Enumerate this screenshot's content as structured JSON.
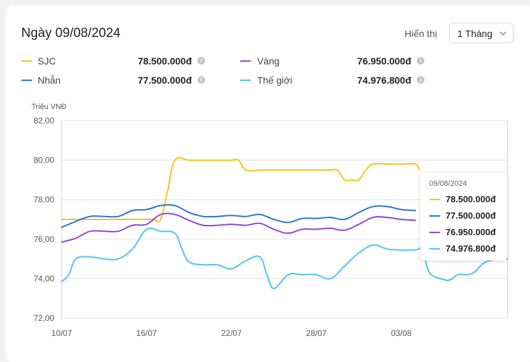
{
  "header": {
    "title": "Ngày 09/08/2024",
    "display_label": "Hiển thị",
    "period_value": "1 Tháng"
  },
  "legend": [
    {
      "name": "SJC",
      "value": "78.500.000đ",
      "color": "#f5c518"
    },
    {
      "name": "Vàng",
      "value": "76.950.000đ",
      "color": "#8c45d6"
    },
    {
      "name": "Nhẫn",
      "value": "77.500.000đ",
      "color": "#2a72d8"
    },
    {
      "name": "Thế giới",
      "value": "74.976.800đ",
      "color": "#4cc4ec"
    }
  ],
  "tooltip": {
    "date": "09/08/2024",
    "values": [
      {
        "value": "78.500.000đ",
        "color": "#f5c518"
      },
      {
        "value": "77.500.000đ",
        "color": "#2a72d8"
      },
      {
        "value": "76.950.000đ",
        "color": "#8c45d6"
      },
      {
        "value": "74.976.800đ",
        "color": "#4cc4ec"
      }
    ]
  },
  "chart_data": {
    "type": "line",
    "ylabel": "Triệu VNĐ",
    "ylim": [
      72,
      82
    ],
    "yticks": [
      "82,00",
      "80,00",
      "78,00",
      "76,00",
      "74,00",
      "72,00"
    ],
    "xlim": [
      0,
      31.5
    ],
    "xticks": [
      {
        "label": "10/07",
        "x": 0
      },
      {
        "label": "16/07",
        "x": 6
      },
      {
        "label": "22/07",
        "x": 12
      },
      {
        "label": "28/07",
        "x": 18
      },
      {
        "label": "03/08",
        "x": 24
      }
    ],
    "grid": true,
    "series": [
      {
        "name": "SJC",
        "color": "#f5c518",
        "x": [
          0,
          1,
          2,
          3,
          4,
          5,
          6,
          6.5,
          7,
          7.5,
          8,
          9,
          10,
          11,
          12,
          12.5,
          13,
          14,
          15,
          16,
          17,
          18,
          19,
          19.5,
          20,
          20.5,
          21,
          21.5,
          22,
          23,
          24,
          25,
          25.3
        ],
        "y": [
          77,
          77,
          77,
          77,
          77,
          77,
          77,
          77,
          77,
          78.5,
          80,
          80,
          80,
          80,
          80,
          80,
          79.5,
          79.5,
          79.5,
          79.5,
          79.5,
          79.5,
          79.5,
          79.5,
          79,
          79,
          79,
          79.5,
          79.8,
          79.8,
          79.8,
          79.8,
          79.5
        ]
      },
      {
        "name": "Nhẫn",
        "color": "#2a72d8",
        "x": [
          0,
          1,
          2,
          3,
          4,
          5,
          6,
          7,
          8,
          9,
          10,
          11,
          12,
          13,
          14,
          15,
          16,
          17,
          18,
          19,
          20,
          21,
          22,
          23,
          24,
          25
        ],
        "y": [
          76.6,
          76.9,
          77.15,
          77.15,
          77.15,
          77.45,
          77.5,
          77.7,
          77.7,
          77.35,
          77.15,
          77.15,
          77.2,
          77.15,
          77.25,
          77.0,
          76.85,
          77.05,
          77.05,
          77.1,
          77.0,
          77.35,
          77.65,
          77.65,
          77.5,
          77.45
        ]
      },
      {
        "name": "Vàng",
        "color": "#8c45d6",
        "x": [
          0,
          1,
          2,
          3,
          4,
          5,
          6,
          7,
          8,
          9,
          10,
          11,
          12,
          13,
          14,
          15,
          16,
          17,
          18,
          19,
          20,
          21,
          22,
          23,
          24,
          25
        ],
        "y": [
          75.85,
          76.05,
          76.4,
          76.4,
          76.4,
          76.7,
          76.75,
          77.25,
          77.25,
          76.95,
          76.7,
          76.7,
          76.75,
          76.7,
          76.8,
          76.5,
          76.3,
          76.5,
          76.5,
          76.55,
          76.45,
          76.75,
          77.1,
          77.1,
          77.0,
          76.95
        ]
      },
      {
        "name": "Thế giới",
        "color": "#4cc4ec",
        "x": [
          0,
          0.5,
          1,
          2,
          3,
          4,
          5,
          6,
          7,
          8,
          8.5,
          9,
          10,
          11,
          12,
          13,
          14,
          14.5,
          15,
          16,
          17,
          18,
          19,
          20,
          21,
          22,
          23,
          24,
          25,
          25.5,
          26,
          27,
          27.5,
          28,
          29,
          30,
          31.5
        ],
        "y": [
          73.85,
          74.2,
          75.0,
          75.1,
          75.0,
          75.0,
          75.5,
          76.5,
          76.4,
          76.3,
          75.5,
          74.85,
          74.7,
          74.7,
          74.5,
          74.9,
          75.1,
          74.2,
          73.5,
          74.2,
          74.2,
          74.2,
          74.0,
          74.65,
          75.3,
          75.7,
          75.5,
          75.45,
          75.45,
          75.45,
          74.3,
          73.95,
          73.95,
          74.2,
          74.25,
          74.85,
          75.0
        ]
      }
    ]
  }
}
